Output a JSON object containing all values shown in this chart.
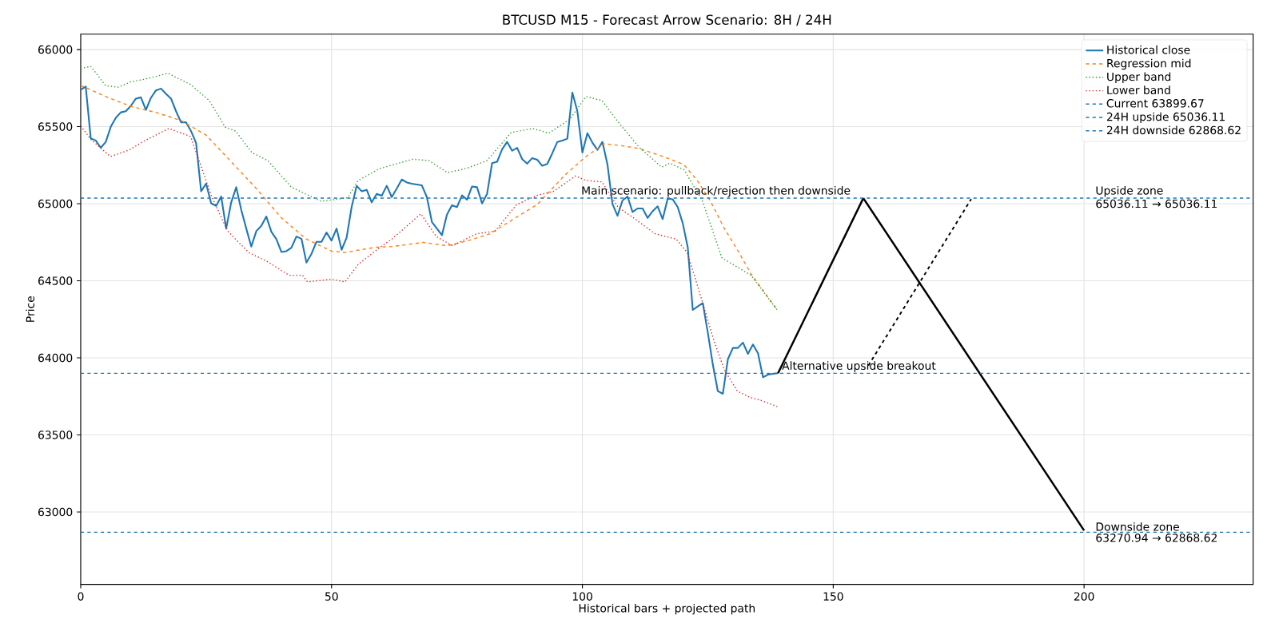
{
  "chart_data": {
    "type": "line",
    "title": "BTCUSD M15 - Forecast Arrow Scenario: 8H / 24H",
    "xlabel": "Historical bars + projected path",
    "ylabel": "Price",
    "xlim": [
      0,
      233.7
    ],
    "ylim": [
      62530,
      66100
    ],
    "xticks": [
      0,
      50,
      100,
      150,
      200
    ],
    "yticks": [
      63000,
      63500,
      64000,
      64500,
      65000,
      65500,
      66000
    ],
    "grid": true,
    "legend": "top right",
    "series": [
      {
        "name": "Historical close",
        "color": "#1f77b4",
        "line_style": "solid",
        "x": [
          0,
          1,
          2,
          3,
          4,
          5,
          6,
          7,
          8,
          9,
          10,
          11,
          12,
          13,
          14,
          15,
          16,
          17,
          18,
          19,
          20,
          21,
          22,
          23,
          24,
          25,
          26,
          27,
          28,
          29,
          30,
          31,
          32,
          33,
          34,
          35,
          36,
          37,
          38,
          39,
          40,
          41,
          42,
          43,
          44,
          45,
          46,
          47,
          48,
          49,
          50,
          51,
          52,
          53,
          54,
          55,
          56,
          57,
          58,
          59,
          60,
          61,
          62,
          63,
          64,
          65,
          66,
          67,
          68,
          69,
          70,
          71,
          72,
          73,
          74,
          75,
          76,
          77,
          78,
          79,
          80,
          81,
          82,
          83,
          84,
          85,
          86,
          87,
          88,
          89,
          90,
          91,
          92,
          93,
          94,
          95,
          96,
          97,
          98,
          99,
          100,
          101,
          102,
          103,
          104,
          105,
          106,
          107,
          108,
          109,
          110,
          111,
          112,
          113,
          114,
          115,
          116,
          117,
          118,
          119,
          120,
          121,
          122,
          123,
          124,
          125,
          126,
          127,
          128,
          129,
          130,
          131,
          132,
          133,
          134,
          135,
          136,
          137,
          138,
          139
        ],
        "values": [
          65739,
          65760,
          65424,
          65410,
          65363,
          65401,
          65500,
          65557,
          65593,
          65600,
          65635,
          65682,
          65690,
          65609,
          65687,
          65735,
          65747,
          65713,
          65682,
          65600,
          65528,
          65528,
          65471,
          65393,
          65081,
          65130,
          65003,
          64986,
          65047,
          64839,
          65009,
          65107,
          64960,
          64839,
          64722,
          64822,
          64856,
          64917,
          64818,
          64770,
          64687,
          64692,
          64715,
          64787,
          64773,
          64618,
          64675,
          64753,
          64753,
          64813,
          64761,
          64839,
          64701,
          64779,
          64978,
          65116,
          65081,
          65090,
          65009,
          65064,
          65052,
          65116,
          65043,
          65099,
          65157,
          65138,
          65130,
          65125,
          65119,
          65043,
          64882,
          64839,
          64796,
          64929,
          64990,
          64978,
          65054,
          65026,
          65112,
          65107,
          65002,
          65064,
          65263,
          65272,
          65353,
          65401,
          65344,
          65362,
          65289,
          65260,
          65296,
          65285,
          65246,
          65258,
          65327,
          65401,
          65410,
          65422,
          65721,
          65600,
          65332,
          65457,
          65396,
          65349,
          65401,
          65254,
          64998,
          64922,
          65021,
          65047,
          64946,
          64969,
          64969,
          64908,
          64951,
          64983,
          64900,
          65033,
          65029,
          64978,
          64874,
          64718,
          64311,
          64334,
          64355,
          64164,
          63957,
          63784,
          63767,
          63991,
          64064,
          64064,
          64099,
          64026,
          64087,
          64030,
          63874,
          63891,
          63896,
          63900
        ]
      },
      {
        "name": "Regression mid",
        "color": "#ff7f0e",
        "line_style": "dashed",
        "x": [
          0,
          5,
          10,
          15,
          20,
          25,
          30,
          35,
          40,
          45,
          50,
          53,
          55,
          59,
          62,
          68.3,
          73,
          77.3,
          81.6,
          85.8,
          91,
          96.5,
          100.7,
          104.4,
          108.1,
          111.3,
          116.1,
          120.2,
          122.9,
          125.6,
          128.3,
          130.9,
          133.6,
          136.3,
          138.8
        ],
        "values": [
          65768,
          65695,
          65631,
          65592,
          65540,
          65445,
          65272,
          65099,
          64908,
          64770,
          64692,
          64683,
          64697,
          64718,
          64722,
          64749,
          64727,
          64761,
          64805,
          64891,
          64995,
          65185,
          65306,
          65389,
          65375,
          65358,
          65306,
          65254,
          65151,
          65012,
          64839,
          64701,
          64545,
          64424,
          64312
        ]
      },
      {
        "name": "Upper band",
        "color": "#2ca02c",
        "line_style": "dotted",
        "x": [
          0,
          2,
          5,
          7.5,
          10,
          12.8,
          17.4,
          21.9,
          25.6,
          28.8,
          30.9,
          34.1,
          37.3,
          42,
          47.9,
          53.2,
          55.3,
          59.6,
          66.2,
          69.4,
          73.1,
          76.8,
          81,
          85.8,
          90.1,
          93.3,
          97.5,
          100.7,
          103.9,
          107.1,
          111.3,
          115.8,
          117.4,
          120.3,
          124,
          127.8,
          133.6,
          138.8
        ],
        "values": [
          65877,
          65891,
          65765,
          65756,
          65791,
          65808,
          65846,
          65773,
          65670,
          65497,
          65471,
          65332,
          65280,
          65107,
          65016,
          65038,
          65151,
          65228,
          65289,
          65280,
          65202,
          65228,
          65280,
          65462,
          65488,
          65458,
          65548,
          65695,
          65670,
          65531,
          65367,
          65237,
          65263,
          65220,
          65012,
          64649,
          64536,
          64312
        ]
      },
      {
        "name": "Lower band",
        "color": "#d62728",
        "line_style": "dotted",
        "x": [
          0,
          2,
          5.9,
          9.7,
          12.8,
          17.6,
          21.9,
          23.5,
          26.1,
          29.3,
          33.5,
          37.3,
          41.5,
          44.2,
          45.2,
          50,
          52.7,
          55.3,
          59.6,
          62,
          67.8,
          70.9,
          74.1,
          78.9,
          82.6,
          86.9,
          91.1,
          94.3,
          98.6,
          100.7,
          103.9,
          107.1,
          110.2,
          114.5,
          118.7,
          120.9,
          124,
          126.2,
          128.3,
          130.9,
          133.6,
          135.7,
          138.8
        ],
        "values": [
          65505,
          65419,
          65306,
          65349,
          65410,
          65488,
          65436,
          65289,
          65047,
          64822,
          64683,
          64623,
          64536,
          64536,
          64493,
          64510,
          64493,
          64606,
          64715,
          64770,
          64934,
          64787,
          64727,
          64805,
          64822,
          64995,
          65055,
          65081,
          65180,
          65151,
          65142,
          64978,
          64908,
          64805,
          64770,
          64683,
          64355,
          64113,
          63922,
          63784,
          63741,
          63723,
          63684
        ]
      },
      {
        "color": "#000000",
        "line_style": "solid",
        "x": [
          139,
          156
        ],
        "values": [
          63900,
          65036
        ]
      },
      {
        "color": "#000000",
        "line_style": "solid",
        "x": [
          156,
          200
        ],
        "values": [
          65036,
          62880
        ]
      },
      {
        "color": "#000000",
        "line_style": "dashed",
        "x": [
          157,
          177.5
        ],
        "values": [
          63950,
          65030
        ]
      }
    ],
    "ref_lines": [
      {
        "axis": "y",
        "value": 63899.67,
        "label": "Current 63899.67",
        "color": "#1f77b4",
        "line_style": "dashed"
      },
      {
        "axis": "y",
        "value": 65036.11,
        "label": "24H upside 65036.11",
        "color": "#1f77b4",
        "line_style": "dashed"
      },
      {
        "axis": "y",
        "value": 62868.62,
        "label": "24H downside 62868.62",
        "color": "#1f77b4",
        "line_style": "dashed"
      }
    ],
    "annotations": [
      {
        "text": "Main scenario: pullback/rejection then downside",
        "x": 99.5,
        "y": 65036.11
      },
      {
        "text": "Alternative upside breakout",
        "x": 139.5,
        "y": 63899.67
      },
      {
        "text": "Upside zone",
        "x": 202,
        "y": 65036.11
      },
      {
        "text": "65036.11 → 65036.11",
        "x": 202,
        "y": 65036.11
      },
      {
        "text": "Downside zone",
        "x": 202,
        "y": 62868.62
      },
      {
        "text": "63270.94 → 62868.62",
        "x": 202,
        "y": 62868.62
      }
    ]
  }
}
